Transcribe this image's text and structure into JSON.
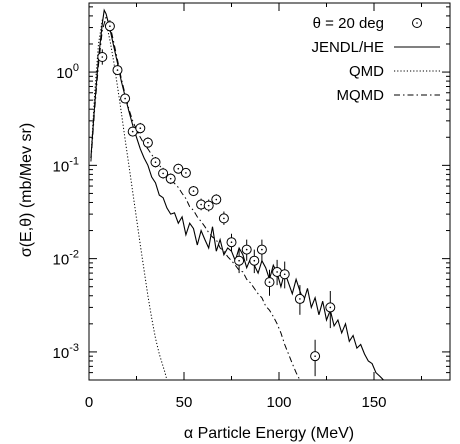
{
  "chart_data": {
    "type": "line",
    "xlabel": "α Particle Energy (MeV)",
    "ylabel": "σ(E,θ) (mb/Mev sr)",
    "xlim": [
      0,
      190
    ],
    "ylim": [
      0.0005,
      5.5
    ],
    "yscale": "log",
    "x_ticks": [
      0,
      50,
      100,
      150
    ],
    "x_tick_labels": [
      "0",
      "50",
      "100",
      "150"
    ],
    "y_ticks": [
      0.001,
      0.01,
      0.1,
      1
    ],
    "y_tick_labels": [
      "10",
      "10",
      "10",
      "10"
    ],
    "y_tick_exponents": [
      "-3",
      "-2",
      "-1",
      "0"
    ],
    "legend_position": "top-right",
    "series": [
      {
        "name": "θ = 20 deg",
        "style": "points-errorbars",
        "x": [
          7,
          11,
          15,
          19,
          23,
          27,
          31,
          35,
          39,
          43,
          47,
          51,
          55,
          59,
          63,
          67,
          71,
          75,
          79,
          83,
          87,
          91,
          95,
          99,
          103,
          111,
          119,
          127
        ],
        "y": [
          1.45,
          3.1,
          1.05,
          0.52,
          0.23,
          0.25,
          0.175,
          0.108,
          0.082,
          0.072,
          0.092,
          0.083,
          0.053,
          0.038,
          0.037,
          0.043,
          0.027,
          0.015,
          0.0095,
          0.0125,
          0.0095,
          0.0125,
          0.0056,
          0.0072,
          0.0068,
          0.0037,
          0.0009,
          0.003
        ],
        "err_lo": [
          0.25,
          0.4,
          0.12,
          0.06,
          0.025,
          0.03,
          0.02,
          0.013,
          0.01,
          0.009,
          0.01,
          0.009,
          0.006,
          0.005,
          0.005,
          0.005,
          0.004,
          0.003,
          0.0025,
          0.003,
          0.0025,
          0.003,
          0.0016,
          0.002,
          0.002,
          0.0012,
          0.00035,
          0.0012
        ],
        "err_hi": [
          0.3,
          0.5,
          0.15,
          0.07,
          0.03,
          0.035,
          0.025,
          0.015,
          0.012,
          0.01,
          0.012,
          0.01,
          0.007,
          0.006,
          0.006,
          0.006,
          0.005,
          0.0035,
          0.003,
          0.0035,
          0.003,
          0.0035,
          0.002,
          0.0025,
          0.0025,
          0.0015,
          0.00045,
          0.0015
        ]
      },
      {
        "name": "JENDL/HE",
        "style": "solid",
        "x": [
          1,
          3,
          5,
          7,
          8,
          9,
          11,
          13,
          15,
          17,
          19,
          21,
          23,
          25,
          27,
          29,
          31,
          33,
          35,
          37,
          39,
          41,
          43,
          45,
          47,
          49,
          51,
          53,
          55,
          57,
          59,
          61,
          63,
          65,
          67,
          69,
          71,
          73,
          75,
          77,
          79,
          81,
          83,
          85,
          87,
          89,
          91,
          93,
          95,
          97,
          99,
          101,
          103,
          105,
          107,
          109,
          111,
          113,
          115,
          117,
          119,
          121,
          123,
          125,
          127,
          129,
          131,
          133,
          135,
          137,
          139,
          141,
          143,
          145,
          147,
          149,
          151,
          153,
          155
        ],
        "y": [
          0.12,
          0.45,
          1.4,
          3.3,
          4.6,
          4.2,
          2.9,
          1.9,
          1.25,
          0.8,
          0.55,
          0.38,
          0.27,
          0.2,
          0.15,
          0.12,
          0.1,
          0.075,
          0.065,
          0.048,
          0.045,
          0.035,
          0.03,
          0.031,
          0.024,
          0.028,
          0.018,
          0.024,
          0.021,
          0.014,
          0.02,
          0.016,
          0.013,
          0.022,
          0.012,
          0.016,
          0.011,
          0.013,
          0.012,
          0.0095,
          0.013,
          0.011,
          0.008,
          0.01,
          0.0085,
          0.007,
          0.0095,
          0.008,
          0.006,
          0.0085,
          0.007,
          0.005,
          0.0072,
          0.0055,
          0.0042,
          0.006,
          0.0045,
          0.0035,
          0.0048,
          0.003,
          0.0038,
          0.0025,
          0.0035,
          0.0022,
          0.0028,
          0.0019,
          0.0022,
          0.0016,
          0.002,
          0.0013,
          0.0015,
          0.0011,
          0.0012,
          0.00095,
          0.0008,
          0.00075,
          0.0006,
          0.00055,
          0.0005
        ]
      },
      {
        "name": "QMD",
        "style": "dotted",
        "x": [
          1,
          3,
          5,
          7,
          9,
          11,
          13,
          15,
          17,
          19,
          21,
          23,
          25,
          27,
          29,
          31,
          33,
          35,
          37,
          39,
          40,
          41
        ],
        "y": [
          0.12,
          0.6,
          2.0,
          3.6,
          3.4,
          2.2,
          1.3,
          0.7,
          0.37,
          0.19,
          0.1,
          0.052,
          0.027,
          0.014,
          0.0075,
          0.004,
          0.0023,
          0.0014,
          0.00095,
          0.0007,
          0.0006,
          0.0005
        ]
      },
      {
        "name": "MQMD",
        "style": "dashdot",
        "x": [
          1,
          3,
          5,
          7,
          9,
          11,
          13,
          15,
          17,
          19,
          21,
          23,
          25,
          27,
          29,
          31,
          33,
          35,
          37,
          39,
          41,
          43,
          45,
          47,
          49,
          51,
          53,
          55,
          57,
          59,
          61,
          63,
          65,
          67,
          69,
          71,
          73,
          75,
          77,
          79,
          81,
          83,
          85,
          87,
          89,
          91,
          93,
          95,
          97,
          99,
          101,
          103,
          105,
          107,
          109,
          111
        ],
        "y": [
          0.11,
          0.4,
          1.2,
          2.8,
          3.9,
          3.2,
          2.1,
          1.35,
          0.85,
          0.58,
          0.4,
          0.3,
          0.24,
          0.2,
          0.17,
          0.15,
          0.13,
          0.115,
          0.1,
          0.09,
          0.08,
          0.07,
          0.064,
          0.058,
          0.05,
          0.044,
          0.036,
          0.033,
          0.028,
          0.025,
          0.022,
          0.019,
          0.017,
          0.016,
          0.013,
          0.012,
          0.0105,
          0.0095,
          0.0085,
          0.0075,
          0.0072,
          0.006,
          0.0055,
          0.0048,
          0.0042,
          0.0038,
          0.0031,
          0.0028,
          0.0024,
          0.002,
          0.0016,
          0.0012,
          0.00095,
          0.00075,
          0.0006,
          0.0005
        ]
      }
    ]
  }
}
